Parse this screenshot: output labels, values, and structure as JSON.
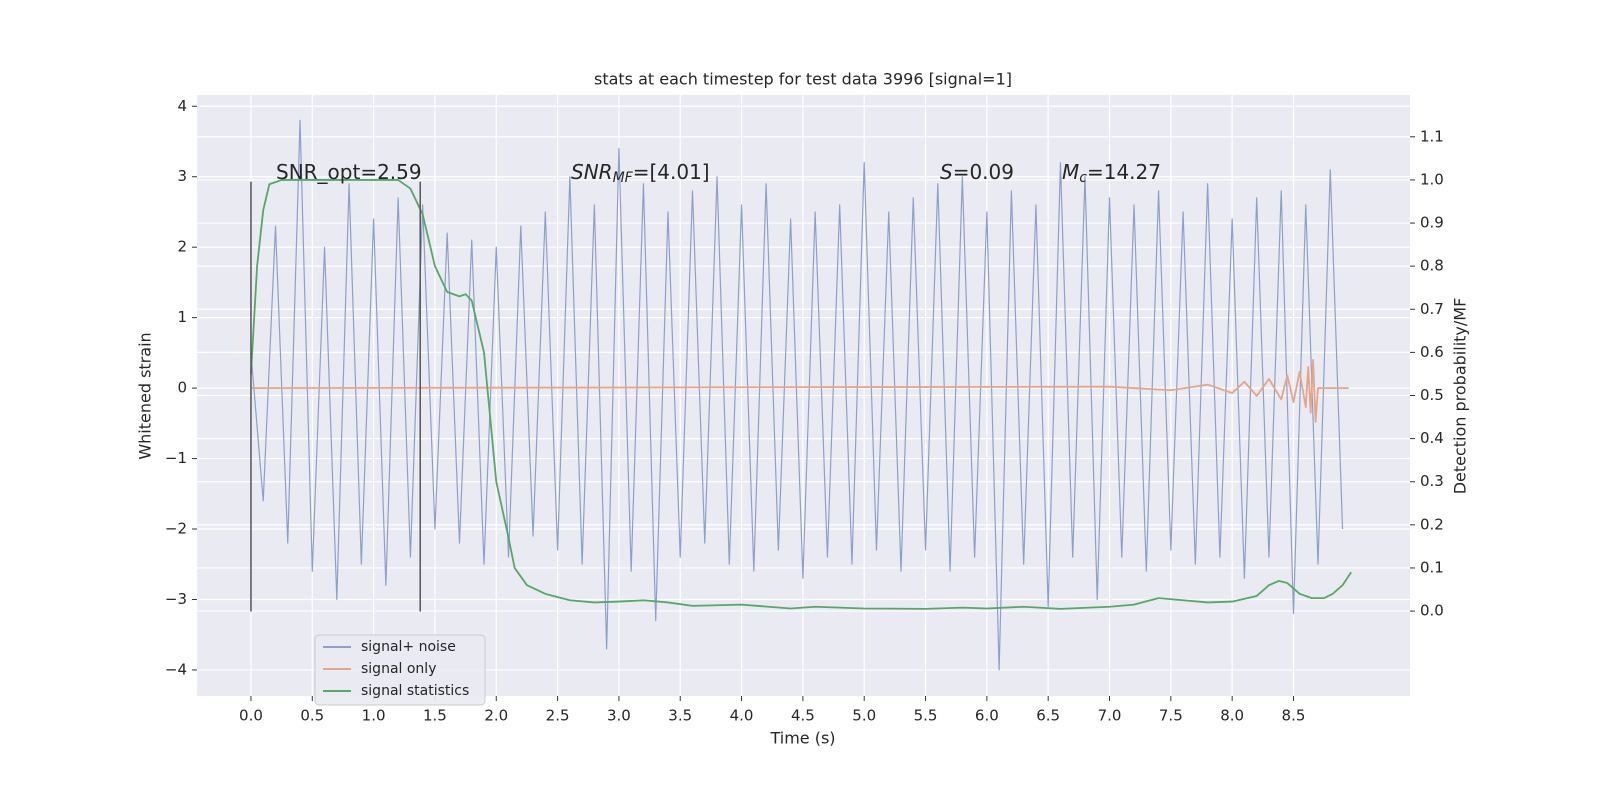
{
  "chart_data": {
    "type": "line",
    "title": "stats at each timestep for test data 3996 [signal=1]",
    "xlabel": "Time (s)",
    "ylabel": "Whitened strain",
    "y2label": "Detection probability/MF",
    "xlim": [
      -0.44,
      9.45
    ],
    "ylim": [
      -4.37,
      4.16
    ],
    "y2lim": [
      -0.197,
      1.197
    ],
    "xticks": [
      {
        "value": 0,
        "label": "0.0"
      },
      0.5,
      {
        "value": 1,
        "label": "1.0"
      },
      1.5,
      {
        "value": 2,
        "label": "2.0"
      },
      2.5,
      {
        "value": 3,
        "label": "3.0"
      },
      3.5,
      {
        "value": 4,
        "label": "4.0"
      },
      4.5,
      {
        "value": 5,
        "label": "5.0"
      },
      5.5,
      {
        "value": 6,
        "label": "6.0"
      },
      6.5,
      {
        "value": 7,
        "label": "7.0"
      },
      7.5,
      {
        "value": 8,
        "label": "8.0"
      },
      8.5
    ],
    "yticks": [
      {
        "value": -4,
        "label": "−4"
      },
      {
        "value": -3,
        "label": "−3"
      },
      {
        "value": -2,
        "label": "−2"
      },
      {
        "value": -1,
        "label": "−1"
      },
      0,
      1,
      2,
      3,
      4
    ],
    "y2ticks": [
      {
        "value": 0,
        "label": "0.0"
      },
      0.1,
      0.2,
      0.3,
      0.4,
      0.5,
      0.6,
      0.7,
      0.8,
      0.9,
      {
        "value": 1,
        "label": "1.0"
      },
      1.1
    ],
    "grid": true,
    "legend": "lower left",
    "series": [
      {
        "name": "signal+ noise",
        "color": "#8da0cb",
        "x": [
          0,
          0.1,
          0.2,
          0.3,
          0.4,
          0.5,
          0.6,
          0.7,
          0.8,
          0.9,
          1,
          1.1,
          1.2,
          1.3,
          1.4,
          1.5,
          1.6,
          1.7,
          1.8,
          1.9,
          2,
          2.1,
          2.2,
          2.3,
          2.4,
          2.5,
          2.6,
          2.7,
          2.8,
          2.9,
          3,
          3.1,
          3.2,
          3.3,
          3.4,
          3.5,
          3.6,
          3.7,
          3.8,
          3.9,
          4,
          4.1,
          4.2,
          4.3,
          4.4,
          4.5,
          4.6,
          4.7,
          4.8,
          4.9,
          5,
          5.1,
          5.2,
          5.3,
          5.4,
          5.5,
          5.6,
          5.7,
          5.8,
          5.9,
          6,
          6.1,
          6.2,
          6.3,
          6.4,
          6.5,
          6.6,
          6.7,
          6.8,
          6.9,
          7,
          7.1,
          7.2,
          7.3,
          7.4,
          7.5,
          7.6,
          7.7,
          7.8,
          7.9,
          8,
          8.1,
          8.2,
          8.3,
          8.4,
          8.5,
          8.6,
          8.7,
          8.8,
          8.9
        ],
        "values": [
          0.5,
          -1.6,
          2.3,
          -2.2,
          3.8,
          -2.6,
          2.0,
          -3.0,
          2.9,
          -2.5,
          2.4,
          -2.8,
          2.7,
          -2.4,
          2.6,
          -2.0,
          2.2,
          -2.2,
          2.1,
          -2.5,
          2.0,
          -2.4,
          2.3,
          -2.1,
          2.5,
          -2.3,
          3.0,
          -2.5,
          2.6,
          -3.7,
          3.4,
          -2.6,
          2.9,
          -3.3,
          2.5,
          -2.4,
          2.8,
          -2.2,
          3.0,
          -2.5,
          2.6,
          -2.6,
          2.9,
          -2.3,
          2.4,
          -2.7,
          2.5,
          -2.4,
          2.6,
          -2.5,
          3.2,
          -2.3,
          2.5,
          -2.6,
          2.7,
          -2.3,
          2.9,
          -2.6,
          3.0,
          -2.4,
          2.5,
          -4.0,
          2.8,
          -2.5,
          2.6,
          -3.1,
          3.2,
          -2.4,
          3.0,
          -3.0,
          2.7,
          -2.4,
          2.6,
          -2.6,
          2.8,
          -2.3,
          2.5,
          -2.5,
          2.9,
          -2.4,
          2.4,
          -2.7,
          2.7,
          -2.4,
          2.8,
          -3.2,
          2.6,
          -2.5,
          3.1,
          -2.0
        ]
      },
      {
        "name": "signal only",
        "color": "#e5a58b",
        "x": [
          0,
          7.0,
          7.5,
          7.8,
          8.0,
          8.1,
          8.2,
          8.3,
          8.4,
          8.45,
          8.5,
          8.55,
          8.6,
          8.62,
          8.64,
          8.66,
          8.68,
          8.7,
          8.95
        ],
        "values": [
          0,
          0.02,
          -0.03,
          0.05,
          -0.07,
          0.09,
          -0.11,
          0.13,
          -0.16,
          0.18,
          -0.2,
          0.23,
          -0.27,
          0.3,
          -0.35,
          0.4,
          -0.48,
          0,
          0
        ]
      },
      {
        "name": "signal statistics",
        "color": "#55a868",
        "axis": "y2",
        "x": [
          0,
          0.05,
          0.1,
          0.15,
          0.25,
          0.5,
          0.8,
          1.2,
          1.3,
          1.4,
          1.5,
          1.6,
          1.7,
          1.75,
          1.8,
          1.9,
          2.0,
          2.1,
          2.15,
          2.25,
          2.4,
          2.6,
          2.8,
          3.0,
          3.2,
          3.4,
          3.6,
          4.0,
          4.4,
          4.6,
          5.0,
          5.5,
          5.8,
          6.0,
          6.3,
          6.6,
          7.0,
          7.2,
          7.4,
          7.6,
          7.8,
          8.0,
          8.2,
          8.3,
          8.38,
          8.45,
          8.55,
          8.65,
          8.75,
          8.82,
          8.9,
          8.97
        ],
        "values": [
          0.55,
          0.8,
          0.93,
          0.99,
          1.0,
          1.0,
          1.0,
          1.0,
          0.98,
          0.92,
          0.8,
          0.74,
          0.73,
          0.735,
          0.72,
          0.6,
          0.3,
          0.17,
          0.1,
          0.06,
          0.04,
          0.025,
          0.02,
          0.022,
          0.025,
          0.02,
          0.012,
          0.015,
          0.006,
          0.01,
          0.006,
          0.005,
          0.008,
          0.006,
          0.01,
          0.005,
          0.01,
          0.015,
          0.03,
          0.025,
          0.02,
          0.022,
          0.035,
          0.06,
          0.07,
          0.065,
          0.04,
          0.03,
          0.03,
          0.04,
          0.06,
          0.09
        ]
      }
    ],
    "vlines": {
      "x": [
        0,
        1.38
      ],
      "ymin": -3.17,
      "ymax": 2.93,
      "color": "#555555"
    },
    "annotations": [
      {
        "text": "SNR_opt=2.59"
      },
      {
        "symbol": "SNR",
        "subscript": "MF",
        "text": "=[4.01]"
      },
      {
        "symbol": "S",
        "text": "=0.09"
      },
      {
        "symbol": "M",
        "subscript": "c",
        "text": "=14.27"
      }
    ]
  }
}
